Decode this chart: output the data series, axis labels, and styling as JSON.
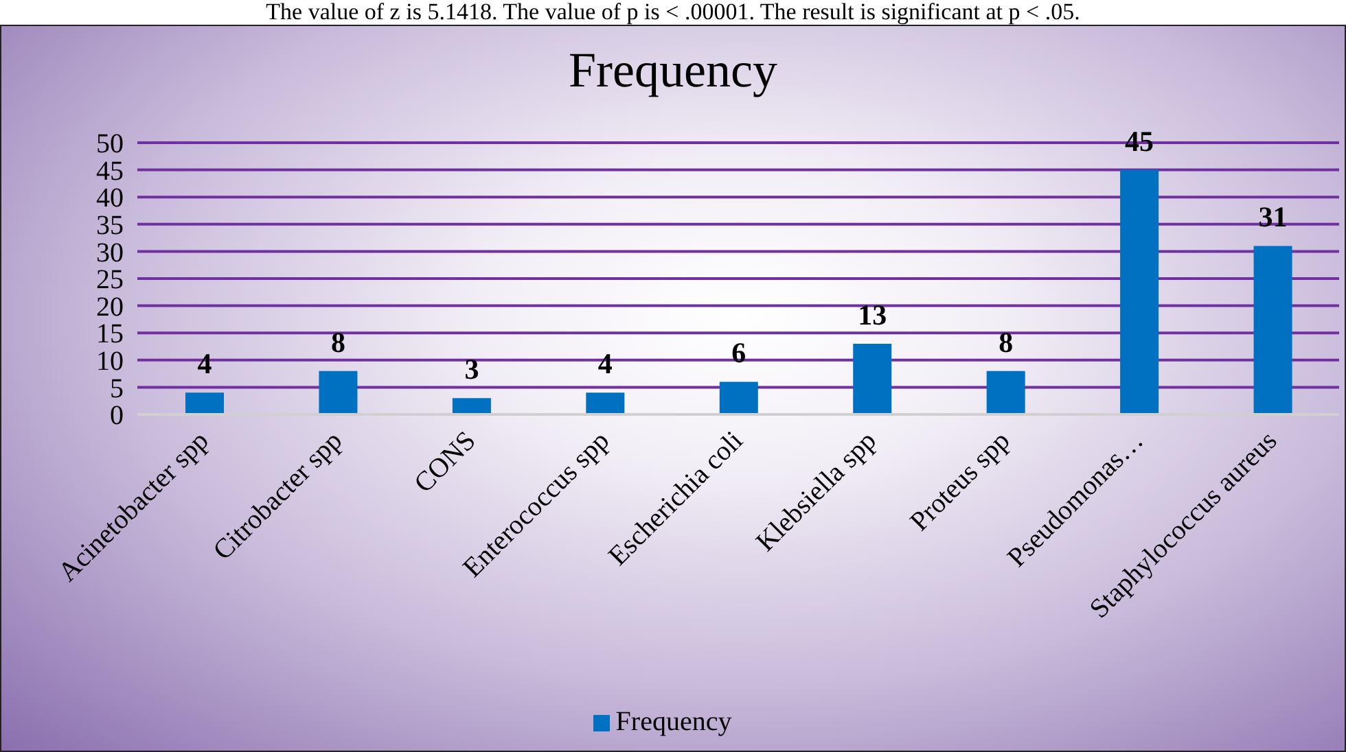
{
  "chart_data": {
    "type": "bar",
    "title": "Frequency",
    "annotations": [
      "The value of z is 5.1418. The value of p is < .00001. The result is significant at p < .05."
    ],
    "categories": [
      "Acinetobacter spp",
      "Citrobacter spp",
      "CONS",
      "Enterococcus spp",
      "Escherichia coli",
      "Klebsiella spp",
      "Proteus spp",
      "Pseudomonas…",
      "Staphylococcus aureus"
    ],
    "series": [
      {
        "name": "Frequency",
        "color": "#0070c0",
        "values": [
          4,
          8,
          3,
          4,
          6,
          13,
          8,
          45,
          31
        ]
      }
    ],
    "ylim": [
      0,
      50
    ],
    "yticks": [
      0,
      5,
      10,
      15,
      20,
      25,
      30,
      35,
      40,
      45,
      50
    ],
    "grid": "y",
    "legend": "bottom",
    "data_labels": true
  }
}
